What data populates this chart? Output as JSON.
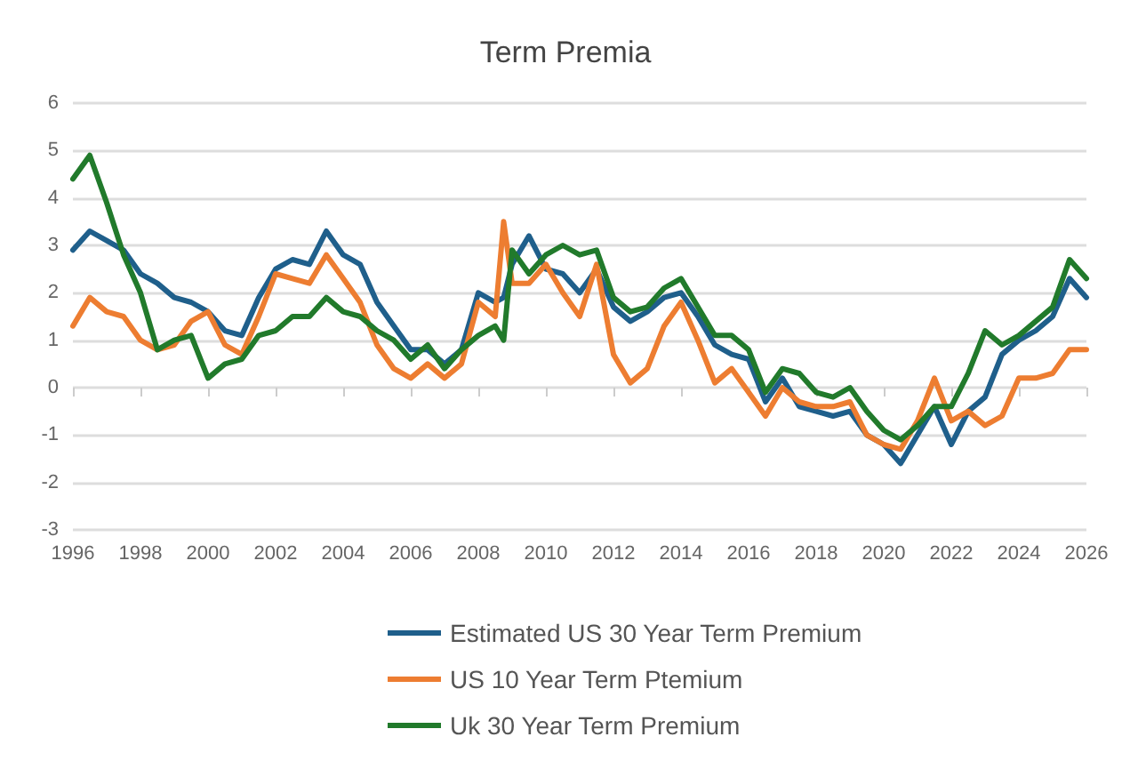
{
  "chart_data": {
    "type": "line",
    "title": "Term Premia",
    "x": [
      1996,
      1996.5,
      1997,
      1997.5,
      1998,
      1998.5,
      1999,
      1999.5,
      2000,
      2000.5,
      2001,
      2001.5,
      2002,
      2002.5,
      2003,
      2003.5,
      2004,
      2004.5,
      2005,
      2005.5,
      2006,
      2006.5,
      2007,
      2007.5,
      2008,
      2008.5,
      2008.75,
      2009,
      2009.5,
      2010,
      2010.5,
      2011,
      2011.5,
      2012,
      2012.5,
      2013,
      2013.5,
      2014,
      2014.5,
      2015,
      2015.5,
      2016,
      2016.5,
      2017,
      2017.5,
      2018,
      2018.5,
      2019,
      2019.5,
      2020,
      2020.5,
      2021,
      2021.5,
      2022,
      2022.5,
      2023,
      2023.5,
      2024,
      2024.5,
      2025,
      2025.5,
      2026
    ],
    "series": [
      {
        "name": "Estimated US 30 Year Term Premium",
        "color": "#1f5f8b",
        "values": [
          2.9,
          3.3,
          3.1,
          2.9,
          2.4,
          2.2,
          1.9,
          1.8,
          1.6,
          1.2,
          1.1,
          1.9,
          2.5,
          2.7,
          2.6,
          3.3,
          2.8,
          2.6,
          1.8,
          1.3,
          0.8,
          0.8,
          0.5,
          0.8,
          2.0,
          1.8,
          1.9,
          2.6,
          3.2,
          2.5,
          2.4,
          2.0,
          2.5,
          1.7,
          1.4,
          1.6,
          1.9,
          2.0,
          1.5,
          0.9,
          0.7,
          0.6,
          -0.3,
          0.2,
          -0.4,
          -0.5,
          -0.6,
          -0.5,
          -1.0,
          -1.2,
          -1.6,
          -1.0,
          -0.4,
          -1.2,
          -0.5,
          -0.2,
          0.7,
          1.0,
          1.2,
          1.5,
          2.3,
          1.9
        ]
      },
      {
        "name": "US 10 Year Term Ptemium",
        "color": "#ed7d31",
        "values": [
          1.3,
          1.9,
          1.6,
          1.5,
          1.0,
          0.8,
          0.9,
          1.4,
          1.6,
          0.9,
          0.7,
          1.5,
          2.4,
          2.3,
          2.2,
          2.8,
          2.3,
          1.8,
          0.9,
          0.4,
          0.2,
          0.5,
          0.2,
          0.5,
          1.8,
          1.5,
          3.5,
          2.2,
          2.2,
          2.6,
          2.0,
          1.5,
          2.6,
          0.7,
          0.1,
          0.4,
          1.3,
          1.8,
          1.0,
          0.1,
          0.4,
          -0.1,
          -0.6,
          0.0,
          -0.3,
          -0.4,
          -0.4,
          -0.3,
          -1.0,
          -1.2,
          -1.3,
          -0.7,
          0.2,
          -0.7,
          -0.5,
          -0.8,
          -0.6,
          0.2,
          0.2,
          0.3,
          0.8,
          0.8
        ]
      },
      {
        "name": "Uk 30 Year Term Premium",
        "color": "#217a2b",
        "values": [
          4.4,
          4.9,
          3.9,
          2.8,
          2.0,
          0.8,
          1.0,
          1.1,
          0.2,
          0.5,
          0.6,
          1.1,
          1.2,
          1.5,
          1.5,
          1.9,
          1.6,
          1.5,
          1.2,
          1.0,
          0.6,
          0.9,
          0.4,
          0.8,
          1.1,
          1.3,
          1.0,
          2.9,
          2.4,
          2.8,
          3.0,
          2.8,
          2.9,
          1.9,
          1.6,
          1.7,
          2.1,
          2.3,
          1.7,
          1.1,
          1.1,
          0.8,
          -0.1,
          0.4,
          0.3,
          -0.1,
          -0.2,
          0.0,
          -0.5,
          -0.9,
          -1.1,
          -0.8,
          -0.4,
          -0.4,
          0.3,
          1.2,
          0.9,
          1.1,
          1.4,
          1.7,
          2.7,
          2.3
        ]
      }
    ],
    "xlim": [
      1996,
      2026
    ],
    "xticks": [
      1996,
      1998,
      2000,
      2002,
      2004,
      2006,
      2008,
      2010,
      2012,
      2014,
      2016,
      2018,
      2020,
      2022,
      2024,
      2026
    ],
    "ylim": [
      -3,
      6
    ],
    "yticks": [
      -3,
      -2,
      -1,
      0,
      1,
      2,
      3,
      4,
      5,
      6
    ],
    "grid": "y",
    "legend": "bottom",
    "marker": "none",
    "line_style": "solid"
  }
}
